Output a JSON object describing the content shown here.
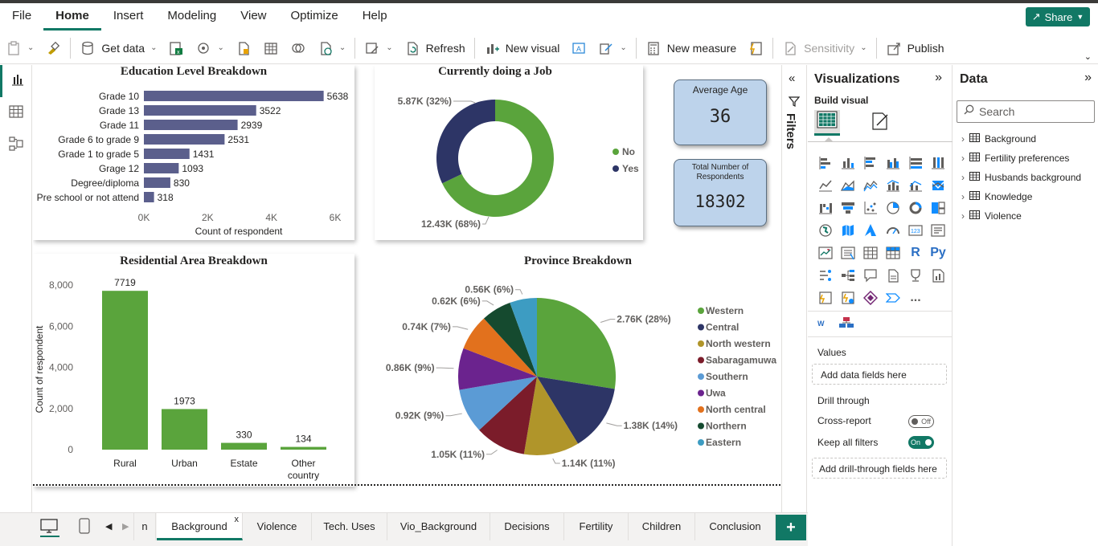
{
  "menu": {
    "items": [
      "File",
      "Home",
      "Insert",
      "Modeling",
      "View",
      "Optimize",
      "Help"
    ],
    "active": "Home",
    "share_label": "Share"
  },
  "ribbon": {
    "get_data": "Get data",
    "refresh": "Refresh",
    "new_visual": "New visual",
    "new_measure": "New measure",
    "sensitivity": "Sensitivity",
    "publish": "Publish"
  },
  "colors": {
    "accent": "#117865",
    "bar_blue": "#5b5f8c",
    "bar_green": "#5aa43c",
    "donut_no": "#5aa43c",
    "donut_yes": "#2d3566",
    "kpi_bg": "#bdd3eb"
  },
  "visuals": {
    "education": {
      "title": "Education Level Breakdown",
      "xlabel": "Count of respondent"
    },
    "job": {
      "title": "Currently doing a Job",
      "label_yes": "5.87K (32%)",
      "label_no": "12.43K (68%)",
      "legend_no": "No",
      "legend_yes": "Yes"
    },
    "avg_age": {
      "label": "Average Age",
      "value": "36"
    },
    "total": {
      "label": "Total Number of Respondents",
      "value": "18302"
    },
    "residential": {
      "title": "Residential Area Breakdown",
      "ylabel": "Count of respondent",
      "cat_other_line1": "Other",
      "cat_other_line2": "country"
    },
    "province": {
      "title": "Province Breakdown"
    }
  },
  "chart_data": [
    {
      "type": "bar",
      "orientation": "horizontal",
      "title": "Education Level Breakdown",
      "xlabel": "Count of respondent",
      "ylabel": "",
      "categories": [
        "Grade 10",
        "Grade 13",
        "Grade 11",
        "Grade 6 to grade 9",
        "Grade 1 to grade 5",
        "Grage 12",
        "Degree/diploma",
        "Pre school or not attend"
      ],
      "values": [
        5638,
        3522,
        2939,
        2531,
        1431,
        1093,
        830,
        318
      ],
      "xticks": [
        "0K",
        "2K",
        "4K",
        "6K"
      ],
      "xlim": [
        0,
        6000
      ]
    },
    {
      "type": "pie",
      "variant": "donut",
      "title": "Currently doing a Job",
      "categories": [
        "No",
        "Yes"
      ],
      "values": [
        12430,
        5870
      ],
      "labels": [
        "12.43K (68%)",
        "5.87K (32%)"
      ],
      "legend": "right"
    },
    {
      "type": "bar",
      "orientation": "vertical",
      "title": "Residential Area Breakdown",
      "xlabel": "",
      "ylabel": "Count of respondent",
      "categories": [
        "Rural",
        "Urban",
        "Estate",
        "Other country"
      ],
      "values": [
        7719,
        1973,
        330,
        134
      ],
      "yticks": [
        "0",
        "2,000",
        "4,000",
        "6,000",
        "8,000"
      ],
      "ylim": [
        0,
        8000
      ]
    },
    {
      "type": "pie",
      "title": "Province Breakdown",
      "categories": [
        "Western",
        "Central",
        "North western",
        "Sabaragamuwa",
        "Southern",
        "Uwa",
        "North central",
        "Northern",
        "Eastern"
      ],
      "values": [
        2760,
        1380,
        1140,
        1050,
        920,
        860,
        740,
        620,
        560
      ],
      "labels": [
        "2.76K (28%)",
        "1.38K (14%)",
        "1.14K (11%)",
        "1.05K (11%)",
        "0.92K (9%)",
        "0.86K (9%)",
        "0.74K (7%)",
        "0.62K (6%)",
        "0.56K (6%)"
      ],
      "colors": [
        "#5aa43c",
        "#2d3566",
        "#b0952a",
        "#7b1c2a",
        "#5b9bd5",
        "#6b238e",
        "#e2711d",
        "#154a2f",
        "#3d9cc2"
      ],
      "legend": "right"
    }
  ],
  "filters": {
    "label": "Filters"
  },
  "viz_pane": {
    "title": "Visualizations",
    "build_visual": "Build visual",
    "values_label": "Values",
    "values_placeholder": "Add data fields here",
    "drill_through": "Drill through",
    "cross_report": "Cross-report",
    "cross_report_state": "Off",
    "keep_filters": "Keep all filters",
    "keep_filters_state": "On",
    "drill_placeholder": "Add drill-through fields here",
    "r_label": "R",
    "py_label": "Py",
    "more_label": "..."
  },
  "data_pane": {
    "title": "Data",
    "search_placeholder": "Search",
    "tables": [
      "Background",
      "Fertility preferences",
      "Husbands background",
      "Knowledge",
      "Violence"
    ]
  },
  "tabs": {
    "partial": "n",
    "items": [
      "Background",
      "Violence",
      "Tech. Uses",
      "Vio_Background",
      "Decisions",
      "Fertility",
      "Children",
      "Conclusion"
    ],
    "active": "Background",
    "close": "x",
    "add": "+"
  }
}
